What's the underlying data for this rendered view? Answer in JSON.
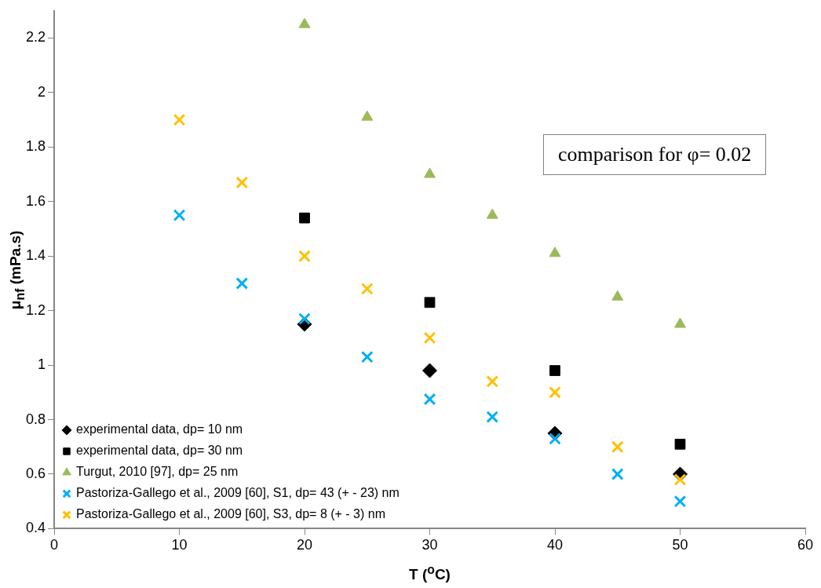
{
  "chart_data": {
    "type": "scatter",
    "xlabel": "T ($^{o}$C)",
    "ylabel": "μ$_{nf}$ (mPa.s)",
    "annotations": [
      "comparison for φ= 0.02"
    ],
    "xlim": [
      0,
      60
    ],
    "xticks": [
      0,
      10,
      20,
      30,
      40,
      50,
      60
    ],
    "ylim": [
      0.4,
      2.3
    ],
    "yticks": [
      0.4,
      0.6,
      0.8,
      1,
      1.2,
      1.4,
      1.6,
      1.8,
      2,
      2.2
    ],
    "grid": false,
    "legend": "bottom left",
    "series": [
      {
        "name": "experimental data, dp= 10 nm",
        "color": "#000000",
        "marker": "diamond",
        "x": [
          20,
          30,
          40,
          50
        ],
        "values": [
          1.15,
          0.98,
          0.75,
          0.6
        ]
      },
      {
        "name": "experimental data, dp= 30 nm",
        "color": "#000000",
        "marker": "square",
        "x": [
          20,
          30,
          40,
          50
        ],
        "values": [
          1.54,
          1.23,
          0.98,
          0.71
        ]
      },
      {
        "name": "Turgut, 2010 [97], dp= 25 nm",
        "color": "#9bbb59",
        "marker": "triangle",
        "x": [
          20,
          25,
          30,
          35,
          40,
          45,
          50
        ],
        "values": [
          2.25,
          1.91,
          1.7,
          1.55,
          1.41,
          1.25,
          1.15
        ]
      },
      {
        "name": "Pastoriza-Gallego et al., 2009 [60], S1, dp= 43 (+ - 23) nm",
        "color": "#00b0f0",
        "marker": "cross",
        "x": [
          10,
          15,
          20,
          25,
          30,
          35,
          40,
          45,
          50
        ],
        "values": [
          1.55,
          1.3,
          1.17,
          1.03,
          0.875,
          0.81,
          0.73,
          0.6,
          0.5
        ]
      },
      {
        "name": "Pastoriza-Gallego et al., 2009 [60], S3, dp= 8 (+ - 3) nm",
        "color": "#ffc000",
        "marker": "cross",
        "x": [
          10,
          15,
          20,
          25,
          30,
          35,
          40,
          45,
          50
        ],
        "values": [
          1.9,
          1.67,
          1.4,
          1.28,
          1.1,
          0.94,
          0.9,
          0.7,
          0.58
        ]
      }
    ]
  }
}
